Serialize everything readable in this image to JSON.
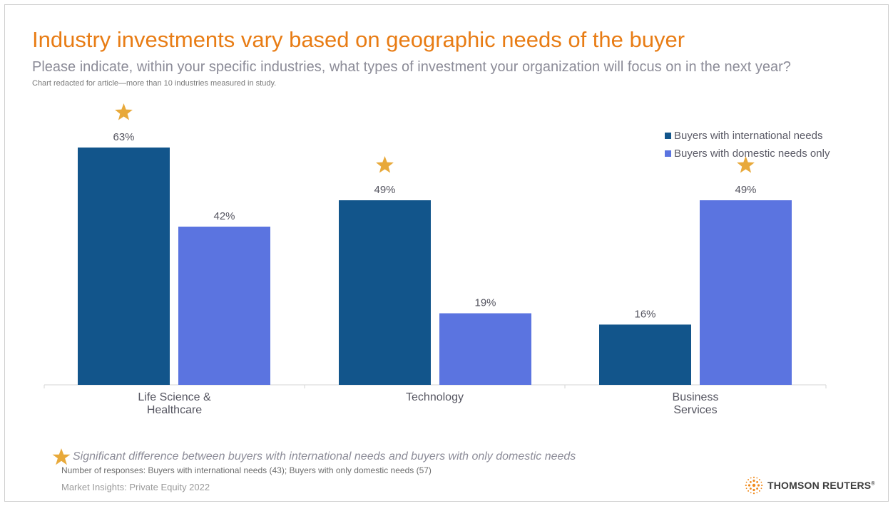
{
  "slide": {
    "title": "Industry investments vary based on geographic needs of the buyer",
    "subtitle": "Please indicate, within your specific industries, what types of investment your organization will focus on in the next year?",
    "note": "Chart redacted for article—more than 10 industries measured in study.",
    "significance_text": "Significant difference between buyers with international needs and buyers with only domestic needs",
    "responses_text": "Number of responses: Buyers with international needs (43); Buyers with only domestic needs (57)",
    "source_text": "Market Insights: Private Equity 2022",
    "brand_name": "THOMSON REUTERS",
    "brand_mark": "®"
  },
  "colors": {
    "title": "#e87c14",
    "international": "#12558b",
    "domestic": "#5b74e0",
    "star": "#e8a93a"
  },
  "icons": {
    "significance": "star-icon",
    "brand": "thomson-reuters-logo-icon"
  },
  "chart_data": {
    "type": "bar",
    "categories": [
      [
        "Life Science &",
        "Healthcare"
      ],
      [
        "Technology"
      ],
      [
        "Business",
        "Services"
      ]
    ],
    "series": [
      {
        "name": "Buyers with international needs",
        "values": [
          63,
          49,
          16
        ],
        "labels": [
          "63%",
          "49%",
          "16%"
        ]
      },
      {
        "name": "Buyers with domestic needs only",
        "values": [
          42,
          19,
          49
        ],
        "labels": [
          "42%",
          "19%",
          "49%"
        ]
      }
    ],
    "significant": [
      {
        "category": 0,
        "series": 0
      },
      {
        "category": 1,
        "series": 0
      },
      {
        "category": 2,
        "series": 1
      }
    ],
    "ylim": [
      0,
      63
    ],
    "unit": "%",
    "grid": false,
    "legend_position": "top-right"
  }
}
